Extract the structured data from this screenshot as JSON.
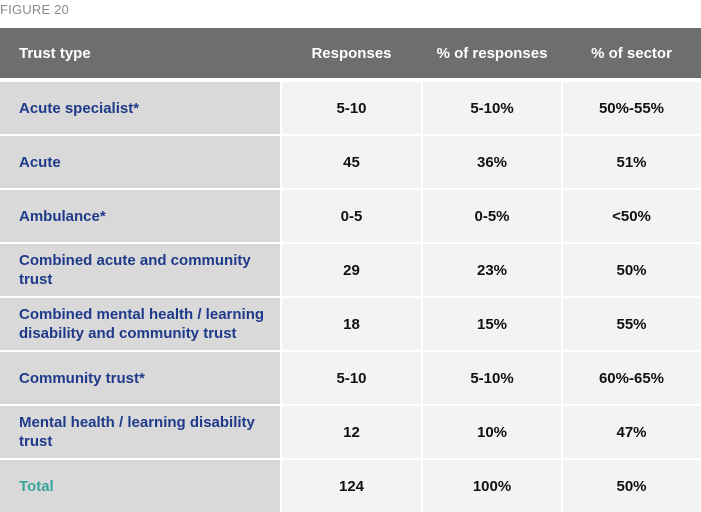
{
  "figure_label": "FIGURE 20",
  "table": {
    "headers": [
      "Trust type",
      "Responses",
      "% of responses",
      "% of sector"
    ],
    "rows": [
      {
        "type": "Acute specialist*",
        "responses": "5-10",
        "pct_responses": "5-10%",
        "pct_sector": "50%-55%"
      },
      {
        "type": "Acute",
        "responses": "45",
        "pct_responses": "36%",
        "pct_sector": "51%"
      },
      {
        "type": "Ambulance*",
        "responses": "0-5",
        "pct_responses": "0-5%",
        "pct_sector": "<50%"
      },
      {
        "type": "Combined acute and community trust",
        "responses": "29",
        "pct_responses": "23%",
        "pct_sector": "50%"
      },
      {
        "type": "Combined mental health / learning disability and community trust",
        "responses": "18",
        "pct_responses": "15%",
        "pct_sector": "55%"
      },
      {
        "type": "Community trust*",
        "responses": "5-10",
        "pct_responses": "5-10%",
        "pct_sector": "60%-65%"
      },
      {
        "type": "Mental health / learning disability trust",
        "responses": "12",
        "pct_responses": "10%",
        "pct_sector": "47%"
      }
    ],
    "total": {
      "type": "Total",
      "responses": "124",
      "pct_responses": "100%",
      "pct_sector": "50%"
    }
  },
  "colors": {
    "header_bg": "#6e6e6e",
    "type_cell_bg": "#d9d9d9",
    "value_cell_bg": "#f3f3f3",
    "type_text": "#1f3a8a",
    "total_text": "#3aa39c"
  }
}
